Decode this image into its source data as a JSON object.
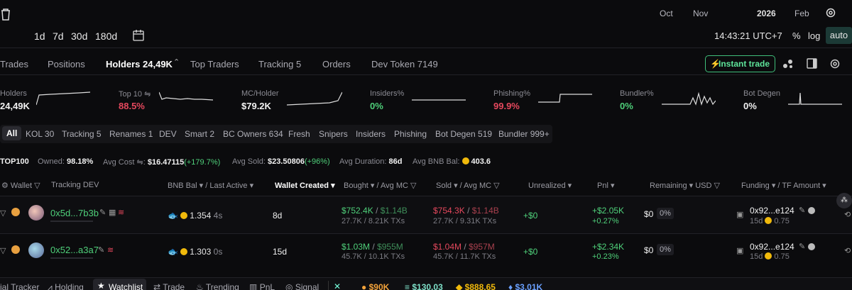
{
  "chart_toolbar": {
    "months": [
      "Oct",
      "Nov",
      "2026",
      "Feb"
    ],
    "ranges": [
      "1d",
      "7d",
      "30d",
      "180d"
    ],
    "time": "14:43:21 UTC+7",
    "percent_label": "%",
    "log_label": "log",
    "auto_label": "auto"
  },
  "tabs": {
    "trades": "Trades",
    "positions": "Positions",
    "holders": "Holders 24,49K",
    "top_traders": "Top Traders",
    "tracking": "Tracking 5",
    "orders": "Orders",
    "dev_token": "Dev Token 7149",
    "instant_trade": "Instant trade"
  },
  "metrics": [
    {
      "label": "Holders",
      "value": "24,49K"
    },
    {
      "label": "Top 10",
      "value": "88.5%"
    },
    {
      "label": "MC/Holder",
      "value": "$79.2K"
    },
    {
      "label": "Insiders%",
      "value": "0%"
    },
    {
      "label": "Phishing%",
      "value": "99.9%"
    },
    {
      "label": "Bundler%",
      "value": "0%"
    },
    {
      "label": "Bot Degen",
      "value": "0%"
    }
  ],
  "filters": [
    "All",
    "KOL 30",
    "Tracking 5",
    "Renames 1",
    "DEV",
    "Smart 2",
    "BC Owners 634",
    "Fresh",
    "Snipers",
    "Insiders",
    "Phishing",
    "Bot Degen 519",
    "Bundler 999+"
  ],
  "stats": {
    "top": "TOP100",
    "owned_label": "Owned:",
    "owned": "98.18%",
    "avg_cost_label": "Avg Cost",
    "avg_cost": "$16.47115",
    "avg_cost_change": "(+179.7%)",
    "avg_sold_label": "Avg Sold:",
    "avg_sold": "$23.50806",
    "avg_sold_change": "(+96%)",
    "avg_duration_label": "Avg Duration:",
    "avg_duration": "86d",
    "avg_bnb_label": "Avg BNB Bal:",
    "avg_bnb": "403.6"
  },
  "table": {
    "headers": {
      "wallet": "Wallet",
      "tracking": "Tracking",
      "dev": "DEV",
      "bnb": "BNB Bal",
      "last_active": "Last Active",
      "wallet_created": "Wallet Created",
      "bought": "Bought",
      "avg_mc": "Avg MC",
      "sold": "Sold",
      "sold_avg_mc": "Avg MC",
      "unrealized": "Unrealized",
      "pnl": "Pnl",
      "remaining": "Remaining",
      "usd": "USD",
      "funding": "Funding",
      "tf_amount": "TF Amount"
    },
    "rows": [
      {
        "wallet": "0x5d...7b3b",
        "bnb": "1.354",
        "last_active": "4s",
        "created": "8d",
        "bought": "$752.4K",
        "bought_mc": "$1.14B",
        "bought_sub": "27.7K / 8.21K TXs",
        "sold": "$754.3K",
        "sold_mc": "$1.14B",
        "sold_sub": "27.7K / 9.31K TXs",
        "unrealized": "+$0",
        "pnl": "+$2.05K",
        "pnl_pct": "+0.27%",
        "remaining": "$0",
        "remaining_pct": "0%",
        "funding": "0x92...e124",
        "funding_age": "15d",
        "funding_amt": "0.75"
      },
      {
        "wallet": "0x52...a3a7",
        "bnb": "1.303",
        "last_active": "0s",
        "created": "15d",
        "bought": "$1.03M",
        "bought_mc": "$955M",
        "bought_sub": "45.7K / 10.1K TXs",
        "sold": "$1.04M",
        "sold_mc": "$957M",
        "sold_sub": "45.7K / 11.7K TXs",
        "unrealized": "+$0",
        "pnl": "+$2.34K",
        "pnl_pct": "+0.23%",
        "remaining": "$0",
        "remaining_pct": "0%",
        "funding": "0x92...e124",
        "funding_age": "15d",
        "funding_amt": "0.75"
      }
    ]
  },
  "bottom_bar": {
    "items": [
      "ial Tracker",
      "Holding",
      "Watchlist",
      "Trade",
      "Trending",
      "PnL",
      "Signal"
    ],
    "prices": [
      "$90K",
      "$130.03",
      "$888.65",
      "$3.01K"
    ]
  },
  "colors": {
    "green": "#4fd07a",
    "red": "#e5485d",
    "accent": "#3fbf7a",
    "background": "#0b0b0d"
  }
}
